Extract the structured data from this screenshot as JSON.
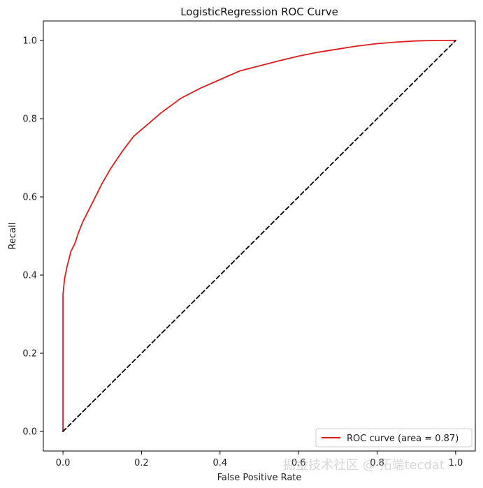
{
  "chart_data": {
    "type": "line",
    "title": "LogisticRegression ROC Curve",
    "xlabel": "False Positive Rate",
    "ylabel": "Recall",
    "xlim": [
      -0.05,
      1.05
    ],
    "ylim": [
      -0.05,
      1.05
    ],
    "x_ticks": [
      0.0,
      0.2,
      0.4,
      0.6,
      0.8,
      1.0
    ],
    "x_tick_labels": [
      "0.0",
      "0.2",
      "0.4",
      "0.6",
      "0.8",
      "1.0"
    ],
    "y_ticks": [
      0.0,
      0.2,
      0.4,
      0.6,
      0.8,
      1.0
    ],
    "y_tick_labels": [
      "0.0",
      "0.2",
      "0.4",
      "0.6",
      "0.8",
      "1.0"
    ],
    "grid": false,
    "legend_position": "lower-right",
    "series": [
      {
        "name": "ROC curve (area = 0.87)",
        "color": "#e01b1b",
        "style": "solid",
        "x": [
          0.0,
          0.0,
          0.002,
          0.004,
          0.006,
          0.01,
          0.015,
          0.02,
          0.03,
          0.04,
          0.05,
          0.06,
          0.08,
          0.1,
          0.12,
          0.15,
          0.18,
          0.2,
          0.25,
          0.3,
          0.35,
          0.4,
          0.45,
          0.5,
          0.55,
          0.6,
          0.65,
          0.7,
          0.75,
          0.8,
          0.85,
          0.9,
          0.95,
          1.0
        ],
        "y": [
          0.0,
          0.35,
          0.37,
          0.39,
          0.4,
          0.42,
          0.44,
          0.46,
          0.48,
          0.51,
          0.535,
          0.555,
          0.595,
          0.635,
          0.67,
          0.715,
          0.755,
          0.772,
          0.815,
          0.852,
          0.878,
          0.9,
          0.922,
          0.935,
          0.948,
          0.96,
          0.97,
          0.978,
          0.986,
          0.992,
          0.996,
          0.999,
          1.0,
          1.0
        ]
      },
      {
        "name": "",
        "color": "#000000",
        "style": "dashed",
        "x": [
          0.0,
          1.0
        ],
        "y": [
          0.0,
          1.0
        ]
      }
    ]
  },
  "watermark": {
    "text": "掘金技术社区 @ 拓端tecdat"
  }
}
